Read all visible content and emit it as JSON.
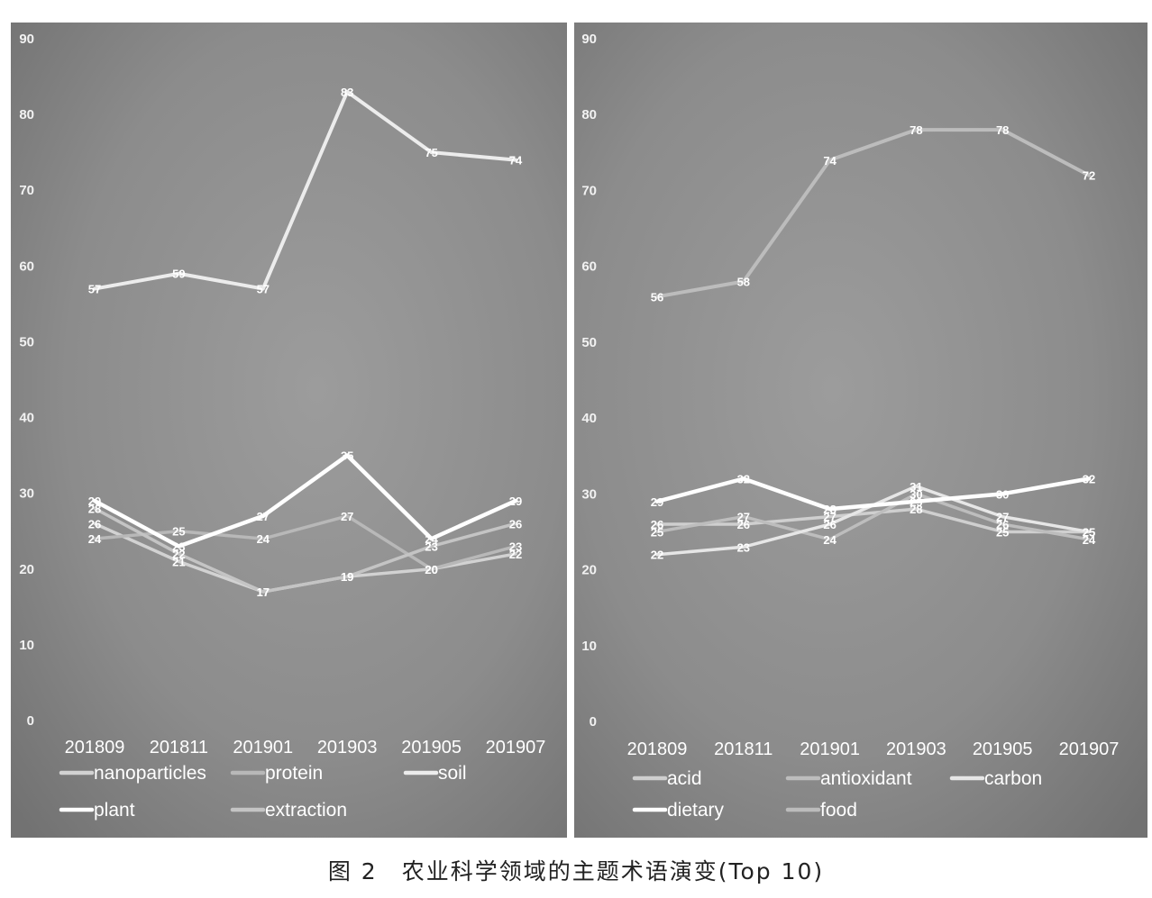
{
  "caption": "图 2　农业科学领域的主题术语演变(Top 10)",
  "chart_data": [
    {
      "type": "line",
      "categories": [
        "201809",
        "201811",
        "201901",
        "201903",
        "201905",
        "201907"
      ],
      "ylim": [
        0,
        90
      ],
      "yticks": [
        0,
        10,
        20,
        30,
        40,
        50,
        60,
        70,
        80,
        90
      ],
      "grid": false,
      "legend_position": "bottom",
      "series": [
        {
          "name": "nanoparticles",
          "values": [
            26,
            21,
            17,
            19,
            20,
            22
          ],
          "color": "#d2d2d2",
          "width": 3.5
        },
        {
          "name": "protein",
          "values": [
            24,
            25,
            24,
            27,
            20,
            23
          ],
          "color": "#b8b8b8",
          "width": 3.5
        },
        {
          "name": "soil",
          "values": [
            57,
            59,
            57,
            83,
            75,
            74
          ],
          "color": "#ececec",
          "width": 4
        },
        {
          "name": "plant",
          "values": [
            29,
            23,
            27,
            35,
            24,
            29
          ],
          "color": "#ffffff",
          "width": 4.5
        },
        {
          "name": "extraction",
          "values": [
            28,
            22,
            17,
            19,
            23,
            26
          ],
          "color": "#c4c4c4",
          "width": 3.5
        }
      ]
    },
    {
      "type": "line",
      "categories": [
        "201809",
        "201811",
        "201901",
        "201903",
        "201905",
        "201907"
      ],
      "ylim": [
        0,
        90
      ],
      "yticks": [
        0,
        10,
        20,
        30,
        40,
        50,
        60,
        70,
        80,
        90
      ],
      "grid": false,
      "legend_position": "bottom",
      "series": [
        {
          "name": "acid",
          "values": [
            26,
            26,
            27,
            28,
            25,
            25
          ],
          "color": "#cfcfcf",
          "width": 3.5
        },
        {
          "name": "antioxidant",
          "values": [
            25,
            27,
            24,
            30,
            26,
            24
          ],
          "color": "#bdbdbd",
          "width": 3.5
        },
        {
          "name": "carbon",
          "values": [
            22,
            23,
            26,
            31,
            27,
            25
          ],
          "color": "#e6e6e6",
          "width": 3.5
        },
        {
          "name": "dietary",
          "values": [
            29,
            32,
            28,
            29,
            30,
            32
          ],
          "color": "#ffffff",
          "width": 4.5
        },
        {
          "name": "food",
          "values": [
            56,
            58,
            74,
            78,
            78,
            72
          ],
          "color": "#bcbcbc",
          "width": 4
        }
      ]
    }
  ]
}
